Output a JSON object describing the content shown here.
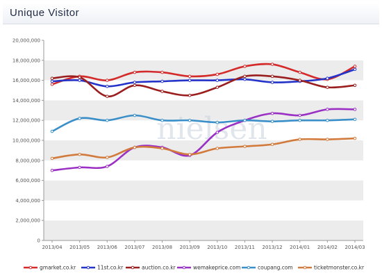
{
  "header": {
    "title": "Unique  Visitor"
  },
  "watermark": "nielsen",
  "chart_data": {
    "type": "line",
    "title": "Unique  Visitor",
    "xlabel": "",
    "ylabel": "",
    "categories": [
      "2013/04",
      "2013/05",
      "2013/06",
      "2013/07",
      "2013/08",
      "2013/09",
      "2013/10",
      "2013/11",
      "2013/12",
      "2014/01",
      "2014/02",
      "2014/03"
    ],
    "ylim": [
      0,
      20000000
    ],
    "yticks": [
      0,
      2000000,
      4000000,
      6000000,
      8000000,
      10000000,
      12000000,
      14000000,
      16000000,
      18000000,
      20000000
    ],
    "ytick_labels": [
      "0",
      "2,000,000",
      "4,000,000",
      "6,000,000",
      "8,000,000",
      "10,000,000",
      "12,000,000",
      "14,000,000",
      "16,000,000",
      "18,000,000",
      "20,000,000"
    ],
    "grid": "horizontal bands",
    "legend_position": "bottom",
    "series": [
      {
        "name": "gmarket.co.kr",
        "color": "#d42a2a",
        "values": [
          15600000,
          16400000,
          16000000,
          16800000,
          16800000,
          16400000,
          16600000,
          17400000,
          17600000,
          16800000,
          16100000,
          17400000
        ]
      },
      {
        "name": "11st.co.kr",
        "color": "#2433c8",
        "values": [
          15900000,
          16000000,
          15400000,
          15800000,
          15900000,
          16000000,
          16000000,
          16100000,
          15800000,
          15900000,
          16200000,
          17100000
        ]
      },
      {
        "name": "auction.co.kr",
        "color": "#9a1e1e",
        "values": [
          16200000,
          16300000,
          14400000,
          15500000,
          14900000,
          14500000,
          15300000,
          16400000,
          16400000,
          16000000,
          15300000,
          15500000
        ]
      },
      {
        "name": "wemakeprice.com",
        "color": "#9a30c4",
        "values": [
          7000000,
          7300000,
          7400000,
          9300000,
          9300000,
          8500000,
          10800000,
          12000000,
          12700000,
          12500000,
          13100000,
          13100000
        ]
      },
      {
        "name": "coupang.com",
        "color": "#3a8fc9",
        "values": [
          10900000,
          12200000,
          12000000,
          12500000,
          12000000,
          12000000,
          11800000,
          12000000,
          11900000,
          12000000,
          12000000,
          12100000
        ]
      },
      {
        "name": "ticketmonster.co.kr",
        "color": "#d27a3c",
        "values": [
          8200000,
          8600000,
          8300000,
          9300000,
          9200000,
          8600000,
          9200000,
          9400000,
          9600000,
          10100000,
          10100000,
          10200000
        ]
      }
    ]
  }
}
